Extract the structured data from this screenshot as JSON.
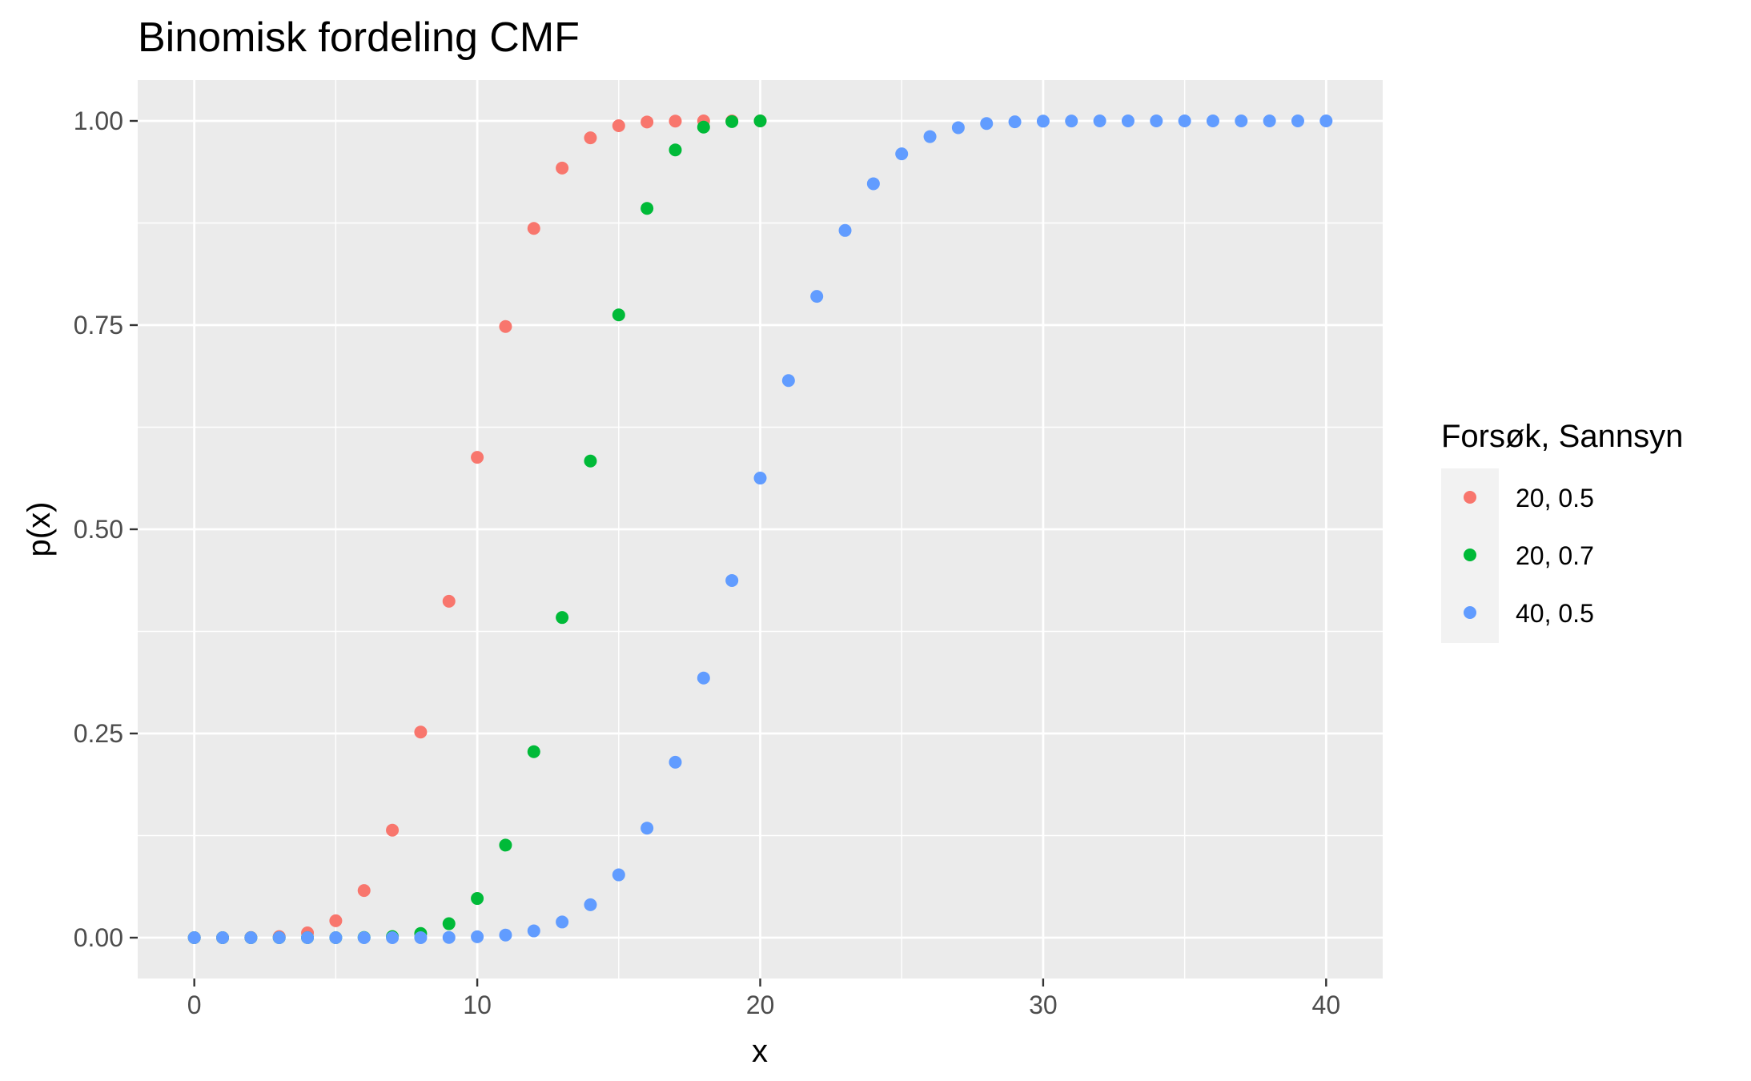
{
  "chart_data": {
    "type": "scatter",
    "title": "Binomisk fordeling CMF",
    "xlabel": "x",
    "ylabel": "p(x)",
    "xlim": [
      -2,
      42
    ],
    "ylim": [
      -0.05,
      1.05
    ],
    "x_ticks": [
      0,
      10,
      20,
      30,
      40
    ],
    "x_tick_labels": [
      "0",
      "10",
      "20",
      "30",
      "40"
    ],
    "y_ticks": [
      0,
      0.25,
      0.5,
      0.75,
      1.0
    ],
    "y_tick_labels": [
      "0.00",
      "0.25",
      "0.50",
      "0.75",
      "1.00"
    ],
    "grid": true,
    "background": "#EBEBEB",
    "legend": {
      "title": "Forsøk, Sannsyn",
      "placement": "right"
    },
    "series": [
      {
        "name": "20, 0.5",
        "color": "#F8766D",
        "x": [
          0,
          1,
          2,
          3,
          4,
          5,
          6,
          7,
          8,
          9,
          10,
          11,
          12,
          13,
          14,
          15,
          16,
          17,
          18,
          19,
          20
        ],
        "y": [
          1e-06,
          2e-05,
          0.0002,
          0.0013,
          0.0059,
          0.0207,
          0.0577,
          0.1316,
          0.2517,
          0.4119,
          0.5881,
          0.7483,
          0.8684,
          0.9423,
          0.9793,
          0.9941,
          0.9987,
          0.9998,
          1.0,
          1.0,
          1.0
        ]
      },
      {
        "name": "20, 0.7",
        "color": "#00BA38",
        "x": [
          0,
          1,
          2,
          3,
          4,
          5,
          6,
          7,
          8,
          9,
          10,
          11,
          12,
          13,
          14,
          15,
          16,
          17,
          18,
          19,
          20
        ],
        "y": [
          0.0,
          0.0,
          0.0,
          0.0,
          0.0,
          2e-05,
          0.0003,
          0.0013,
          0.0051,
          0.0171,
          0.048,
          0.1133,
          0.2277,
          0.392,
          0.5836,
          0.7625,
          0.8929,
          0.9645,
          0.9924,
          0.9992,
          1.0
        ]
      },
      {
        "name": "40, 0.5",
        "color": "#619CFF",
        "x": [
          0,
          1,
          2,
          3,
          4,
          5,
          6,
          7,
          8,
          9,
          10,
          11,
          12,
          13,
          14,
          15,
          16,
          17,
          18,
          19,
          20,
          21,
          22,
          23,
          24,
          25,
          26,
          27,
          28,
          29,
          30,
          31,
          32,
          33,
          34,
          35,
          36,
          37,
          38,
          39,
          40
        ],
        "y": [
          0.0,
          0.0,
          0.0,
          0.0,
          0.0,
          0.0,
          0.0,
          1e-05,
          6e-05,
          0.0003,
          0.0011,
          0.0032,
          0.0083,
          0.0192,
          0.0403,
          0.0769,
          0.1341,
          0.2148,
          0.3179,
          0.4373,
          0.5627,
          0.6821,
          0.7852,
          0.8659,
          0.9231,
          0.9597,
          0.9808,
          0.9917,
          0.9968,
          0.9989,
          0.9997,
          0.9999,
          1.0,
          1.0,
          1.0,
          1.0,
          1.0,
          1.0,
          1.0,
          1.0,
          1.0
        ]
      }
    ]
  }
}
